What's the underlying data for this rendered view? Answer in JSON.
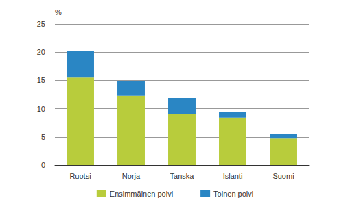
{
  "chart_data": {
    "type": "bar",
    "ylabel": "%",
    "categories": [
      "Ruotsi",
      "Norja",
      "Tanska",
      "Islanti",
      "Suomi"
    ],
    "series": [
      {
        "name": "Ensimmäinen polvi",
        "color": "#b8cc3c",
        "values": [
          15.5,
          12.3,
          9.0,
          8.4,
          4.7
        ]
      },
      {
        "name": "Toinen polvi",
        "color": "#2a86c4",
        "values": [
          4.7,
          2.5,
          2.9,
          1.0,
          0.8
        ]
      }
    ],
    "stacked": true,
    "ylim": [
      0,
      25
    ],
    "yticks": [
      0,
      5,
      10,
      15,
      20,
      25
    ],
    "grid": true,
    "legend": "bottom"
  }
}
